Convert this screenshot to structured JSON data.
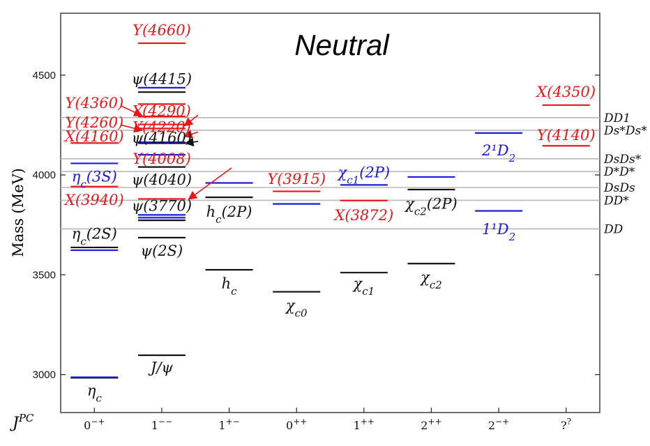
{
  "chart_data": {
    "type": "level-diagram",
    "title": "Neutral",
    "ylabel": "Mass (MeV)",
    "xlabel": "J^PC",
    "ylim": [
      2810,
      4810
    ],
    "yticks": [
      3000,
      3500,
      4000,
      4500
    ],
    "grid": false,
    "colors": {
      "black": "#111111",
      "blue": "#1a1adb",
      "red": "#e81818",
      "threshold": "#b8b8b8"
    },
    "categories": [
      {
        "pre": "0",
        "sup": "−+"
      },
      {
        "pre": "1",
        "sup": "−−"
      },
      {
        "pre": "1",
        "sup": "+−"
      },
      {
        "pre": "0",
        "sup": "++"
      },
      {
        "pre": "1",
        "sup": "++"
      },
      {
        "pre": "2",
        "sup": "++"
      },
      {
        "pre": "2",
        "sup": "−+"
      },
      {
        "pre": "?",
        "sup": "?"
      }
    ],
    "thresholds": [
      {
        "mass": 3730,
        "label": "DD"
      },
      {
        "mass": 3873,
        "label": "DD*"
      },
      {
        "mass": 3937,
        "label": "DsDs"
      },
      {
        "mass": 4017,
        "label": "D*D*"
      },
      {
        "mass": 4081,
        "label": "DsDs*"
      },
      {
        "mass": 4224,
        "label": "Ds*Ds*"
      },
      {
        "mass": 4287,
        "label": "DD1"
      }
    ],
    "levels": [
      {
        "cat": 0,
        "mass": 2984,
        "color": "black"
      },
      {
        "cat": 0,
        "mass": 2987,
        "color": "blue"
      },
      {
        "cat": 0,
        "mass": 3637,
        "color": "black"
      },
      {
        "cat": 0,
        "mass": 3623,
        "color": "blue"
      },
      {
        "cat": 0,
        "mass": 4058,
        "color": "blue"
      },
      {
        "cat": 0,
        "mass": 4160,
        "color": "red"
      },
      {
        "cat": 0,
        "mass": 3942,
        "color": "red"
      },
      {
        "cat": 1,
        "mass": 3097,
        "color": "black"
      },
      {
        "cat": 1,
        "mass": 3686,
        "color": "black"
      },
      {
        "cat": 1,
        "mass": 3773,
        "color": "black"
      },
      {
        "cat": 1,
        "mass": 3786,
        "color": "blue"
      },
      {
        "cat": 1,
        "mass": 3800,
        "color": "blue"
      },
      {
        "cat": 1,
        "mass": 3880,
        "color": "red"
      },
      {
        "cat": 1,
        "mass": 4040,
        "color": "black"
      },
      {
        "cat": 1,
        "mass": 4101,
        "color": "blue"
      },
      {
        "cat": 1,
        "mass": 4159,
        "color": "black"
      },
      {
        "cat": 1,
        "mass": 4164,
        "color": "blue"
      },
      {
        "cat": 1,
        "mass": 4233,
        "color": "red"
      },
      {
        "cat": 1,
        "mass": 4253,
        "color": "red"
      },
      {
        "cat": 1,
        "mass": 4293,
        "color": "red"
      },
      {
        "cat": 1,
        "mass": 4355,
        "color": "red"
      },
      {
        "cat": 1,
        "mass": 4415,
        "color": "black"
      },
      {
        "cat": 1,
        "mass": 4437,
        "color": "blue"
      },
      {
        "cat": 1,
        "mass": 4660,
        "color": "red"
      },
      {
        "cat": 2,
        "mass": 3525,
        "color": "black"
      },
      {
        "cat": 2,
        "mass": 3888,
        "color": "black"
      },
      {
        "cat": 2,
        "mass": 3960,
        "color": "blue"
      },
      {
        "cat": 3,
        "mass": 3415,
        "color": "black"
      },
      {
        "cat": 3,
        "mass": 3918,
        "color": "red"
      },
      {
        "cat": 3,
        "mass": 3855,
        "color": "blue"
      },
      {
        "cat": 4,
        "mass": 3511,
        "color": "black"
      },
      {
        "cat": 4,
        "mass": 3872,
        "color": "red"
      },
      {
        "cat": 4,
        "mass": 3950,
        "color": "blue"
      },
      {
        "cat": 5,
        "mass": 3556,
        "color": "black"
      },
      {
        "cat": 5,
        "mass": 3927,
        "color": "black"
      },
      {
        "cat": 5,
        "mass": 3990,
        "color": "blue"
      },
      {
        "cat": 6,
        "mass": 3820,
        "color": "blue"
      },
      {
        "cat": 6,
        "mass": 4210,
        "color": "blue"
      },
      {
        "cat": 7,
        "mass": 4350,
        "color": "red"
      },
      {
        "cat": 7,
        "mass": 4146,
        "color": "red"
      }
    ],
    "labels": [
      {
        "cat": 0,
        "mass": 2920,
        "color": "black",
        "base": "η",
        "sub": "c",
        "tail": ""
      },
      {
        "cat": 0,
        "mass": 3705,
        "color": "black",
        "base": "η",
        "sub": "c",
        "tail": "(2S)"
      },
      {
        "cat": 0,
        "mass": 3992,
        "color": "blue",
        "base": "η",
        "sub": "c",
        "tail": "(3S)"
      },
      {
        "cat": 0,
        "mass": 4193,
        "color": "red",
        "base": "X(4160)",
        "sub": "",
        "tail": ""
      },
      {
        "cat": 0,
        "mass": 3875,
        "color": "red",
        "base": "X(3940)",
        "sub": "",
        "tail": ""
      },
      {
        "cat": 0,
        "mass": 4360,
        "color": "red",
        "base": "Y(4360)",
        "sub": "",
        "tail": ""
      },
      {
        "cat": 0,
        "mass": 4262,
        "color": "red",
        "base": "Y(4260)",
        "sub": "",
        "tail": ""
      },
      {
        "cat": 1,
        "mass": 3035,
        "color": "black",
        "base": "J/ψ",
        "sub": "",
        "tail": ""
      },
      {
        "cat": 1,
        "mass": 3620,
        "color": "black",
        "base": "ψ(2S)",
        "sub": "",
        "tail": ""
      },
      {
        "cat": 1,
        "mass": 3845,
        "color": "black",
        "base": "ψ(3770)",
        "sub": "",
        "tail": ""
      },
      {
        "cat": 1,
        "mass": 3975,
        "color": "black",
        "base": "ψ(4040)",
        "sub": "",
        "tail": ""
      },
      {
        "cat": 1,
        "mass": 4185,
        "color": "black",
        "base": "ψ(4160)",
        "sub": "",
        "tail": ""
      },
      {
        "cat": 1,
        "mass": 4480,
        "color": "black",
        "base": "ψ(4415)",
        "sub": "",
        "tail": ""
      },
      {
        "cat": 1,
        "mass": 4725,
        "color": "red",
        "base": "Y(4660)",
        "sub": "",
        "tail": ""
      },
      {
        "cat": 1,
        "mass": 4320,
        "color": "red",
        "base": "Y(4290)",
        "sub": "",
        "tail": ""
      },
      {
        "cat": 1,
        "mass": 4240,
        "color": "red",
        "base": "Y(4220)",
        "sub": "",
        "tail": ""
      },
      {
        "cat": 1,
        "mass": 4080,
        "color": "red",
        "base": "Y(4008)",
        "sub": "",
        "tail": ""
      },
      {
        "cat": 2,
        "mass": 3455,
        "color": "black",
        "base": "h",
        "sub": "c",
        "tail": ""
      },
      {
        "cat": 2,
        "mass": 3815,
        "color": "black",
        "base": "h",
        "sub": "c",
        "tail": "(2P)"
      },
      {
        "cat": 3,
        "mass": 3345,
        "color": "black",
        "base": "χ",
        "sub": "c0",
        "tail": ""
      },
      {
        "cat": 3,
        "mass": 3980,
        "color": "red",
        "base": "Y(3915)",
        "sub": "",
        "tail": ""
      },
      {
        "cat": 4,
        "mass": 3455,
        "color": "black",
        "base": "χ",
        "sub": "c1",
        "tail": ""
      },
      {
        "cat": 4,
        "mass": 4012,
        "color": "blue",
        "base": "χ",
        "sub": "c1",
        "tail": "(2P)"
      },
      {
        "cat": 4,
        "mass": 3798,
        "color": "red",
        "base": "X(3872)",
        "sub": "",
        "tail": ""
      },
      {
        "cat": 5,
        "mass": 3488,
        "color": "black",
        "base": "χ",
        "sub": "c2",
        "tail": ""
      },
      {
        "cat": 5,
        "mass": 3855,
        "color": "black",
        "base": "χ",
        "sub": "c2",
        "tail": "(2P)"
      },
      {
        "cat": 6,
        "mass": 4122,
        "color": "blue",
        "base": "2¹D",
        "sub": "2",
        "tail": ""
      },
      {
        "cat": 6,
        "mass": 3728,
        "color": "blue",
        "base": "1¹D",
        "sub": "2",
        "tail": ""
      },
      {
        "cat": 7,
        "mass": 4415,
        "color": "red",
        "base": "X(4350)",
        "sub": "",
        "tail": ""
      },
      {
        "cat": 7,
        "mass": 4200,
        "color": "red",
        "base": "Y(4140)",
        "sub": "",
        "tail": ""
      }
    ]
  }
}
